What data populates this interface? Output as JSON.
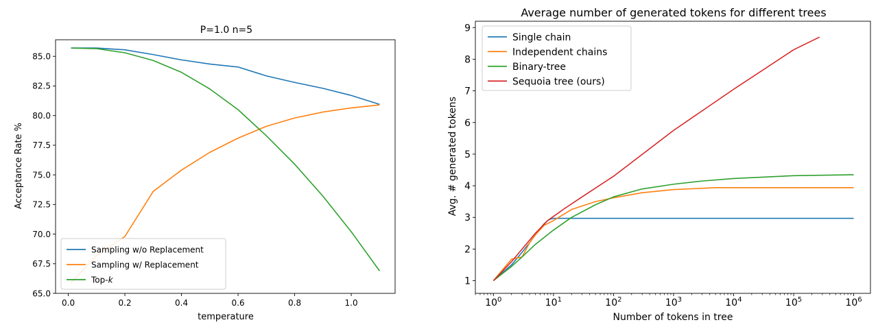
{
  "chart_data": [
    {
      "type": "line",
      "title": "P=1.0 n=5",
      "xlabel": "temperature",
      "ylabel": "Acceptance Rate %",
      "xlim": [
        -0.045,
        1.155
      ],
      "ylim": [
        65,
        86.4
      ],
      "xticks": [
        0.0,
        0.2,
        0.4,
        0.6,
        0.8,
        1.0
      ],
      "xtick_labels": [
        "0.0",
        "0.2",
        "0.4",
        "0.6",
        "0.8",
        "1.0"
      ],
      "yticks": [
        65.0,
        67.5,
        70.0,
        72.5,
        75.0,
        77.5,
        80.0,
        82.5,
        85.0
      ],
      "ytick_labels": [
        "65.0",
        "67.5",
        "70.0",
        "72.5",
        "75.0",
        "77.5",
        "80.0",
        "82.5",
        "85.0"
      ],
      "legend": "lower-left",
      "grid": false,
      "x": [
        0.01,
        0.1,
        0.2,
        0.3,
        0.4,
        0.5,
        0.6,
        0.7,
        0.8,
        0.9,
        1.0,
        1.1
      ],
      "series": [
        {
          "name": "Sampling w/o Replacement",
          "color": "#1f77b4",
          "values": [
            85.7,
            85.7,
            85.55,
            85.15,
            84.7,
            84.35,
            84.1,
            83.35,
            82.8,
            82.3,
            81.7,
            80.95
          ]
        },
        {
          "name": "Sampling w/ Replacement",
          "color": "#ff7f0e",
          "values": [
            65.9,
            68.2,
            69.8,
            73.6,
            75.4,
            76.9,
            78.1,
            79.1,
            79.8,
            80.3,
            80.65,
            80.9
          ]
        },
        {
          "name": "Top-k",
          "name_main": "Top-",
          "name_italic": "k",
          "color": "#2ca02c",
          "values": [
            85.7,
            85.65,
            85.3,
            84.65,
            83.65,
            82.25,
            80.5,
            78.3,
            75.9,
            73.2,
            70.2,
            66.9
          ]
        }
      ]
    },
    {
      "type": "line",
      "title": "Average number of generated tokens for different trees",
      "xlabel": "Number of tokens in tree",
      "ylabel": "Avg. # generated tokens",
      "xscale": "log",
      "xlim": [
        0.5,
        1900000
      ],
      "ylim": [
        0.6,
        9.2
      ],
      "xticks": [
        1,
        10,
        100,
        1000,
        10000,
        100000,
        1000000
      ],
      "xtick_labels": [
        {
          "base": "10",
          "exp": "0"
        },
        {
          "base": "10",
          "exp": "1"
        },
        {
          "base": "10",
          "exp": "2"
        },
        {
          "base": "10",
          "exp": "3"
        },
        {
          "base": "10",
          "exp": "4"
        },
        {
          "base": "10",
          "exp": "5"
        },
        {
          "base": "10",
          "exp": "6"
        }
      ],
      "yticks": [
        1,
        2,
        3,
        4,
        5,
        6,
        7,
        8,
        9
      ],
      "ytick_labels": [
        "1",
        "2",
        "3",
        "4",
        "5",
        "6",
        "7",
        "8",
        "9"
      ],
      "legend": "upper-left",
      "grid": false,
      "series": [
        {
          "name": "Single chain",
          "color": "#1f77b4",
          "x": [
            1,
            2,
            3,
            4,
            5,
            6,
            7,
            8,
            9,
            10,
            20,
            100,
            1000,
            1000000
          ],
          "y": [
            1,
            1.5,
            1.9,
            2.2,
            2.45,
            2.65,
            2.8,
            2.9,
            2.95,
            2.97,
            2.97,
            2.97,
            2.97,
            2.97
          ]
        },
        {
          "name": "Independent chains",
          "color": "#ff7f0e",
          "x": [
            1,
            2,
            3,
            4,
            5,
            7,
            10,
            20,
            50,
            100,
            300,
            1000,
            5000,
            100000,
            1000000
          ],
          "y": [
            1,
            1.68,
            1.75,
            2.2,
            2.45,
            2.75,
            2.9,
            3.25,
            3.5,
            3.62,
            3.78,
            3.88,
            3.94,
            3.94,
            3.94
          ]
        },
        {
          "name": "Binary-tree",
          "color": "#2ca02c",
          "x": [
            1,
            2,
            3,
            5,
            10,
            20,
            50,
            100,
            300,
            1000,
            3000,
            10000,
            100000,
            1000000
          ],
          "y": [
            1,
            1.45,
            1.75,
            2.15,
            2.6,
            3.0,
            3.4,
            3.65,
            3.9,
            4.05,
            4.15,
            4.23,
            4.32,
            4.35
          ]
        },
        {
          "name": "Sequoia tree (ours)",
          "color": "#d62728",
          "x": [
            1,
            2,
            3,
            5,
            8,
            15,
            30,
            100,
            1000,
            10000,
            100000,
            270000
          ],
          "y": [
            1,
            1.6,
            2.0,
            2.5,
            2.9,
            3.27,
            3.65,
            4.3,
            5.75,
            7.05,
            8.3,
            8.7
          ]
        }
      ]
    }
  ]
}
